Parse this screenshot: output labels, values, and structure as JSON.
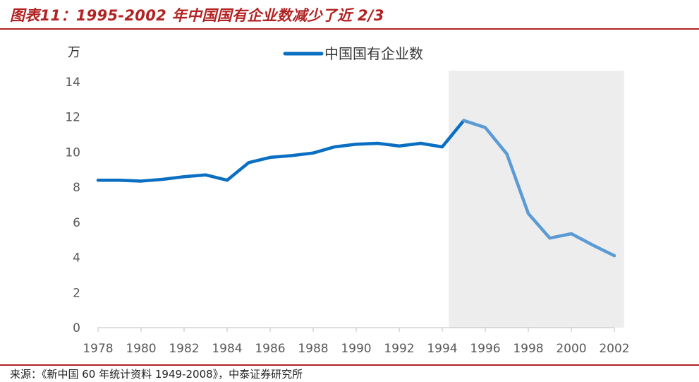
{
  "header": {
    "title": "图表11：1995-2002 年中国国有企业数减少了近 2/3"
  },
  "footer": {
    "source": "来源：《新中国 60 年统计资料 1949-2008》，中泰证券研究所"
  },
  "chart_data": {
    "type": "line",
    "title": "",
    "xlabel": "",
    "ylabel": "万",
    "xlim": [
      1978,
      2002
    ],
    "ylim": [
      0,
      14
    ],
    "y_ticks": [
      0,
      2,
      4,
      6,
      8,
      10,
      12,
      14
    ],
    "x_ticks": [
      1978,
      1980,
      1982,
      1984,
      1986,
      1988,
      1990,
      1992,
      1994,
      1996,
      1998,
      2000,
      2002
    ],
    "grid": false,
    "legend_position": "top-center",
    "highlight_range": [
      1995,
      2002
    ],
    "highlight_color": "#ededed",
    "series": [
      {
        "name": "中国国有企业数",
        "color": "#0a6fc2",
        "highlight_color": "#5b9bd5",
        "x": [
          1978,
          1979,
          1980,
          1981,
          1982,
          1983,
          1984,
          1985,
          1986,
          1987,
          1988,
          1989,
          1990,
          1991,
          1992,
          1993,
          1994,
          1995,
          1996,
          1997,
          1998,
          1999,
          2000,
          2001,
          2002
        ],
        "values": [
          8.4,
          8.4,
          8.35,
          8.45,
          8.6,
          8.7,
          8.4,
          9.4,
          9.7,
          9.8,
          9.95,
          10.3,
          10.45,
          10.5,
          10.35,
          10.5,
          10.3,
          11.8,
          11.4,
          9.9,
          6.5,
          5.1,
          5.35,
          4.7,
          4.1
        ]
      }
    ]
  }
}
